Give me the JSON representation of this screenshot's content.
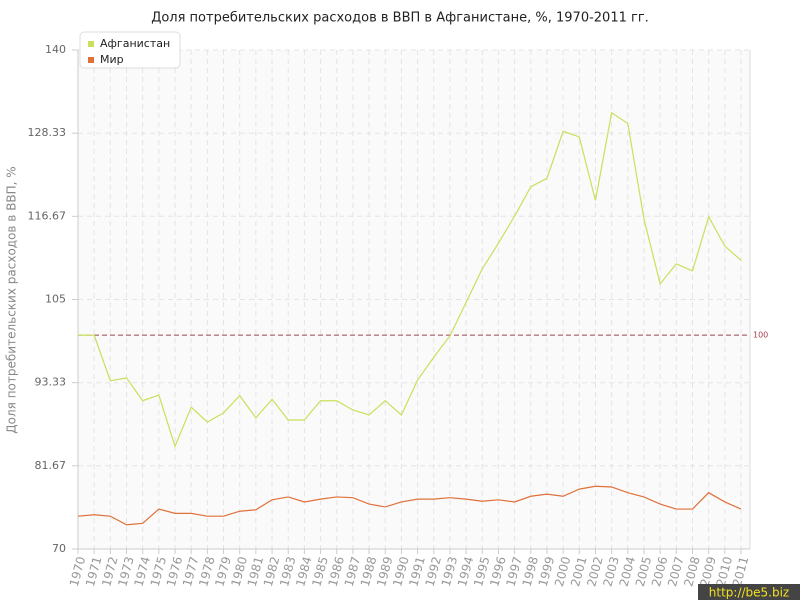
{
  "chart_data": {
    "type": "line",
    "title": "Доля потребительских расходов в ВВП в Афганистане, %, 1970-2011 гг.",
    "y_label": "Доля потребительских расходов в ВВП, %",
    "categories": [
      "1970",
      "1971",
      "1972",
      "1973",
      "1974",
      "1975",
      "1976",
      "1977",
      "1978",
      "1979",
      "1980",
      "1981",
      "1982",
      "1983",
      "1984",
      "1985",
      "1986",
      "1987",
      "1988",
      "1989",
      "1990",
      "1991",
      "1992",
      "1993",
      "1994",
      "1995",
      "1996",
      "1997",
      "1998",
      "1999",
      "2000",
      "2001",
      "2002",
      "2003",
      "2004",
      "2005",
      "2006",
      "2007",
      "2008",
      "2009",
      "2010",
      "2011"
    ],
    "series": [
      {
        "name": "Афганистан",
        "color": "#c8e05c",
        "values": [
          100,
          100,
          93.6,
          94.0,
          90.8,
          91.6,
          84.4,
          89.9,
          87.8,
          89.1,
          91.5,
          88.4,
          91.0,
          88.1,
          88.1,
          90.8,
          90.8,
          89.5,
          88.8,
          90.8,
          88.8,
          93.7,
          96.9,
          99.9,
          104.6,
          109.3,
          112.9,
          116.7,
          120.8,
          122.0,
          128.6,
          127.8,
          118.9,
          131.2,
          129.7,
          116.3,
          107.2,
          110.0,
          109.0,
          116.6,
          112.5,
          110.5
        ]
      },
      {
        "name": "Мир",
        "color": "#e0703a",
        "values": [
          74.6,
          74.8,
          74.6,
          73.4,
          73.6,
          75.6,
          75.0,
          75.0,
          74.6,
          74.6,
          75.3,
          75.5,
          76.9,
          77.3,
          76.6,
          77.0,
          77.3,
          77.2,
          76.3,
          75.9,
          76.6,
          77.0,
          77.0,
          77.2,
          77.0,
          76.7,
          76.9,
          76.6,
          77.4,
          77.7,
          77.4,
          78.4,
          78.8,
          78.7,
          77.9,
          77.3,
          76.3,
          75.6,
          75.6,
          77.9,
          76.6,
          75.6
        ]
      }
    ],
    "ylim": [
      70,
      140
    ],
    "yticks": [
      70,
      81.67,
      93.33,
      105,
      116.67,
      128.33,
      140
    ],
    "reference_line": 100,
    "reference_color": "#a04050",
    "grid": true,
    "legend": "top-left",
    "watermark": "http://be5.biz"
  }
}
